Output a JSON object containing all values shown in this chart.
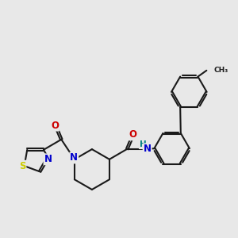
{
  "background_color": "#e8e8e8",
  "bond_color": "#1a1a1a",
  "atom_colors": {
    "N": "#0000cc",
    "O": "#cc0000",
    "S": "#cccc00",
    "H": "#008080",
    "C": "#1a1a1a"
  },
  "line_width": 1.5,
  "dbo": 0.045,
  "figsize": [
    3.0,
    3.0
  ],
  "dpi": 100
}
